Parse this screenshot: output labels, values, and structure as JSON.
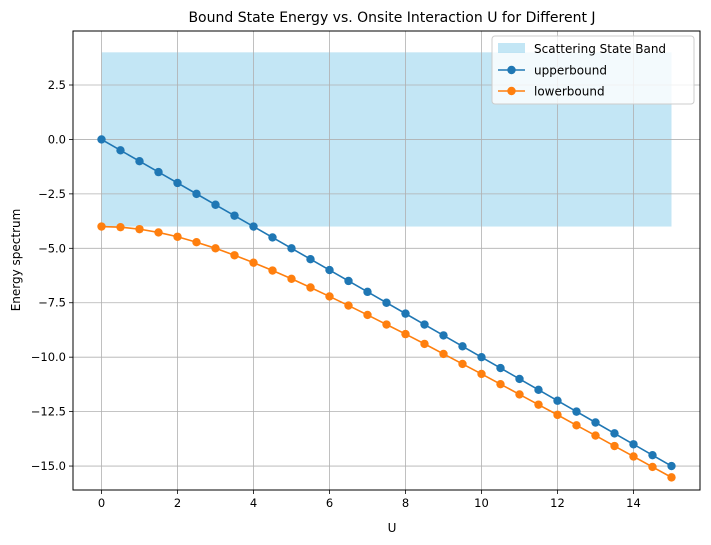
{
  "chart_data": {
    "type": "line",
    "title": "Bound State Energy vs. Onsite Interaction U for Different J",
    "xlabel": "U",
    "ylabel": "Energy  spectrum",
    "xlim": [
      -0.75,
      15.75
    ],
    "ylim": [
      -16.1,
      4.98
    ],
    "xticks": [
      0,
      2,
      4,
      6,
      8,
      10,
      12,
      14
    ],
    "xtick_labels": [
      "0",
      "2",
      "4",
      "6",
      "8",
      "10",
      "12",
      "14"
    ],
    "yticks": [
      2.5,
      0,
      -2.5,
      -5,
      -7.5,
      -10,
      -12.5,
      -15
    ],
    "ytick_labels": [
      "2.5",
      "0.0",
      "−2.5",
      "−5.0",
      "−7.5",
      "−10.0",
      "−12.5",
      "−15.0"
    ],
    "grid": true,
    "legend_position": "top-right",
    "band": {
      "name": "Scattering State Band",
      "x_range": [
        0,
        15
      ],
      "y_range": [
        -4,
        4
      ],
      "color": "#87ceeb"
    },
    "x": [
      0,
      0.5,
      1,
      1.5,
      2,
      2.5,
      3,
      3.5,
      4,
      4.5,
      5,
      5.5,
      6,
      6.5,
      7,
      7.5,
      8,
      8.5,
      9,
      9.5,
      10,
      10.5,
      11,
      11.5,
      12,
      12.5,
      13,
      13.5,
      14,
      14.5,
      15
    ],
    "series": [
      {
        "name": "upperbound",
        "color": "#1f77b4",
        "values": [
          0,
          -0.5,
          -1,
          -1.5,
          -2,
          -2.5,
          -3,
          -3.5,
          -4,
          -4.5,
          -5,
          -5.5,
          -6,
          -6.5,
          -7,
          -7.5,
          -8,
          -8.5,
          -9,
          -9.5,
          -10,
          -10.5,
          -11,
          -11.5,
          -12,
          -12.5,
          -13,
          -13.5,
          -14,
          -14.5,
          -15
        ]
      },
      {
        "name": "lowerbound",
        "color": "#ff7f0e",
        "values": [
          -4,
          -4.03,
          -4.12,
          -4.27,
          -4.47,
          -4.72,
          -5,
          -5.32,
          -5.66,
          -6.02,
          -6.4,
          -6.8,
          -7.21,
          -7.63,
          -8.06,
          -8.5,
          -8.94,
          -9.39,
          -9.85,
          -10.31,
          -10.77,
          -11.24,
          -11.71,
          -12.18,
          -12.65,
          -13.13,
          -13.6,
          -14.08,
          -14.56,
          -15.04,
          -15.52
        ]
      }
    ]
  }
}
